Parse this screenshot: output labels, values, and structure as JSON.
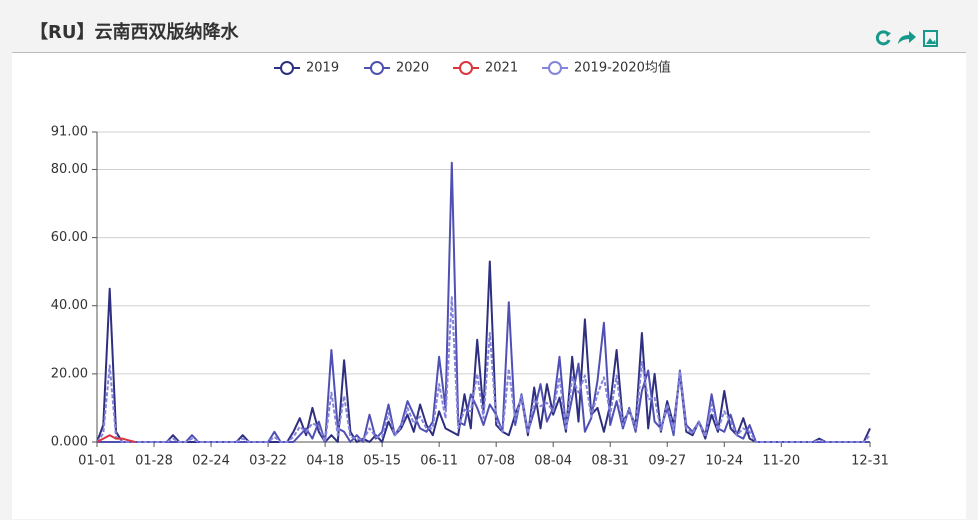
{
  "header": {
    "title": "【RU】云南西双版纳降水"
  },
  "chart_data": {
    "type": "line",
    "categories": [
      "01-01",
      null,
      null,
      null,
      null,
      null,
      null,
      null,
      null,
      "01-28",
      null,
      null,
      null,
      null,
      null,
      null,
      null,
      null,
      "02-24",
      null,
      null,
      null,
      null,
      null,
      null,
      null,
      null,
      "03-22",
      null,
      null,
      null,
      null,
      null,
      null,
      null,
      null,
      "04-18",
      null,
      null,
      null,
      null,
      null,
      null,
      null,
      null,
      "05-15",
      null,
      null,
      null,
      null,
      null,
      null,
      null,
      null,
      "06-11",
      null,
      null,
      null,
      null,
      null,
      null,
      null,
      null,
      "07-08",
      null,
      null,
      null,
      null,
      null,
      null,
      null,
      null,
      "08-04",
      null,
      null,
      null,
      null,
      null,
      null,
      null,
      null,
      "08-31",
      null,
      null,
      null,
      null,
      null,
      null,
      null,
      null,
      "09-27",
      null,
      null,
      null,
      null,
      null,
      null,
      null,
      null,
      "10-24",
      null,
      null,
      null,
      null,
      null,
      null,
      null,
      null,
      "11-20",
      null,
      null,
      null,
      null,
      null,
      null,
      null,
      null,
      null,
      null,
      null,
      null,
      null,
      "12-31"
    ],
    "series": [
      {
        "name": "2019",
        "color": "#2f2f80",
        "values": [
          0,
          5,
          45,
          3,
          0,
          0,
          0,
          0,
          0,
          0,
          0,
          0,
          2,
          0,
          0,
          0,
          0,
          0,
          0,
          0,
          0,
          0,
          0,
          2,
          0,
          0,
          0,
          0,
          0,
          0,
          0,
          3,
          7,
          2,
          10,
          3,
          0,
          2,
          0,
          24,
          3,
          0,
          1,
          0,
          2,
          0,
          6,
          2,
          4,
          8,
          3,
          11,
          5,
          2,
          9,
          4,
          3,
          2,
          14,
          4,
          30,
          9,
          53,
          5,
          3,
          2,
          8,
          13,
          2,
          16,
          4,
          17,
          8,
          13,
          3,
          25,
          6,
          36,
          8,
          10,
          3,
          11,
          27,
          6,
          9,
          5,
          32,
          4,
          20,
          3,
          12,
          5,
          20,
          3,
          2,
          6,
          1,
          8,
          3,
          15,
          4,
          2,
          7,
          1,
          0,
          0,
          0,
          0,
          0,
          0,
          0,
          0,
          0,
          0,
          1,
          0,
          0,
          0,
          0,
          0,
          0,
          0,
          4
        ]
      },
      {
        "name": "2020",
        "color": "#5050b4",
        "values": [
          0,
          0,
          0,
          0,
          0,
          0,
          0,
          0,
          0,
          0,
          0,
          0,
          0,
          0,
          0,
          2,
          0,
          0,
          0,
          0,
          0,
          0,
          0,
          0,
          0,
          0,
          0,
          0,
          3,
          0,
          0,
          0,
          2,
          4,
          1,
          6,
          0,
          27,
          4,
          3,
          0,
          2,
          0,
          8,
          1,
          3,
          11,
          2,
          5,
          12,
          8,
          4,
          3,
          6,
          25,
          10,
          82,
          6,
          5,
          14,
          10,
          5,
          11,
          8,
          3,
          41,
          5,
          14,
          3,
          9,
          17,
          6,
          10,
          25,
          4,
          13,
          23,
          3,
          7,
          18,
          35,
          5,
          12,
          4,
          10,
          3,
          15,
          21,
          6,
          4,
          10,
          2,
          21,
          5,
          3,
          6,
          2,
          14,
          4,
          3,
          8,
          2,
          1,
          5,
          0,
          0,
          0,
          0,
          0,
          0,
          0,
          0,
          0,
          0,
          0,
          0,
          0,
          0,
          0,
          0,
          0,
          0,
          0
        ]
      },
      {
        "name": "2021",
        "color": "#d9363e",
        "values": [
          0,
          1,
          2,
          1,
          1,
          0.5,
          0,
          null,
          null,
          null,
          null,
          null,
          null,
          null,
          null,
          null,
          null,
          null,
          null,
          null,
          null,
          null,
          null,
          null,
          null,
          null,
          null,
          null,
          null,
          null,
          null,
          null,
          null,
          null,
          null,
          null,
          null,
          null,
          null,
          null,
          null,
          null,
          null,
          null,
          null,
          null,
          null,
          null,
          null,
          null,
          null,
          null,
          null,
          null,
          null,
          null,
          null,
          null,
          null,
          null,
          null,
          null,
          null,
          null,
          null,
          null,
          null,
          null,
          null,
          null,
          null,
          null,
          null,
          null,
          null,
          null,
          null,
          null,
          null,
          null,
          null,
          null,
          null,
          null,
          null,
          null,
          null,
          null,
          null,
          null,
          null,
          null,
          null,
          null,
          null,
          null,
          null,
          null,
          null,
          null,
          null,
          null,
          null,
          null,
          null,
          null,
          null,
          null,
          null,
          null,
          null,
          null,
          null,
          null,
          null,
          null,
          null,
          null,
          null,
          null,
          null,
          null,
          null
        ]
      },
      {
        "name": "2019-2020均值",
        "color": "#8484dc",
        "dashed": true,
        "values": [
          0,
          2.5,
          22.5,
          1.5,
          0,
          0,
          0,
          0,
          0,
          0,
          0,
          0,
          1,
          0,
          0,
          1,
          0,
          0,
          0,
          0,
          0,
          0,
          0,
          1,
          0,
          0,
          0,
          0,
          1.5,
          0,
          0,
          1.5,
          4.5,
          3,
          5.5,
          4.5,
          0,
          14.5,
          2,
          13.5,
          1.5,
          1,
          0.5,
          4,
          1.5,
          1.5,
          8.5,
          2,
          4.5,
          10,
          5.5,
          7.5,
          4,
          4,
          17,
          7,
          42.5,
          4,
          9.5,
          9,
          20,
          7,
          32,
          6.5,
          3,
          21.5,
          6.5,
          13.5,
          2.5,
          12.5,
          10.5,
          11.5,
          9,
          19,
          3.5,
          19,
          14.5,
          19.5,
          7.5,
          14,
          19,
          8,
          19.5,
          5,
          9.5,
          4,
          23.5,
          12.5,
          13,
          3.5,
          11,
          3.5,
          20.5,
          4,
          2.5,
          6,
          1.5,
          11,
          3.5,
          9,
          6,
          2,
          4,
          3,
          0,
          0,
          0,
          0,
          0,
          0,
          0,
          0,
          0,
          0,
          0.5,
          0,
          0,
          0,
          0,
          0,
          0,
          0,
          2
        ]
      }
    ],
    "ylim": [
      0,
      91
    ],
    "yticks": [
      {
        "value": 0,
        "label": "0.000"
      },
      {
        "value": 20,
        "label": "20.00"
      },
      {
        "value": 40,
        "label": "40.00"
      },
      {
        "value": 60,
        "label": "60.00"
      },
      {
        "value": 80,
        "label": "80.00"
      },
      {
        "value": 91,
        "label": "91.00"
      }
    ],
    "grid": true
  }
}
